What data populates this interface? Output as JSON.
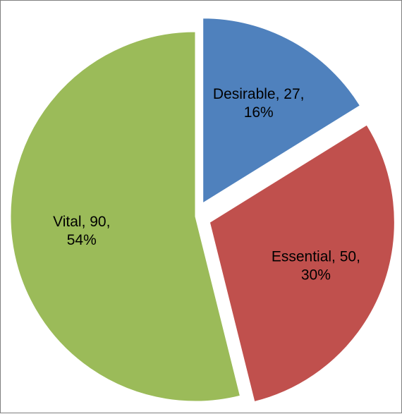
{
  "chart_data": {
    "type": "pie",
    "title": "",
    "slices": [
      {
        "category": "Desirable",
        "value": 27,
        "percent": 16,
        "color": "#4f81bd",
        "label_line1": "Desirable, 27,",
        "label_line2": "16%",
        "exploded": true
      },
      {
        "category": "Essential",
        "value": 50,
        "percent": 30,
        "color": "#c0504d",
        "label_line1": "Essential, 50,",
        "label_line2": "30%",
        "exploded": true
      },
      {
        "category": "Vital",
        "value": 90,
        "percent": 54,
        "color": "#9bbb59",
        "label_line1": "Vital, 90,",
        "label_line2": "54%",
        "exploded": false
      }
    ],
    "legend": "none",
    "start_angle": "12 o'clock",
    "direction": "clockwise"
  }
}
